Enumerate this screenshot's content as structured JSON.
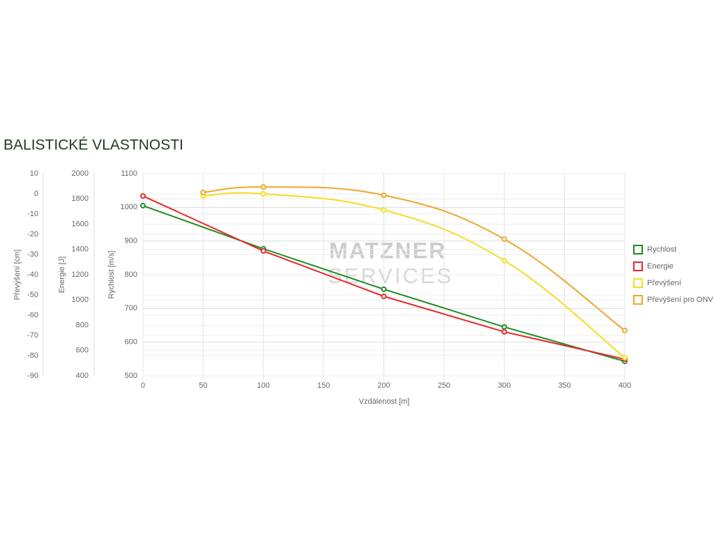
{
  "chart_data": {
    "type": "line",
    "title": "BALISTICKÉ VLASTNOSTI",
    "watermark": [
      "MATZNER",
      "SERVICES"
    ],
    "xlabel": "Vzdálenost [m]",
    "ylabel": "Rychlost [m/s]",
    "y2label": "Energie [J]",
    "y3label": "Převýšení [cm]",
    "xlim": [
      0,
      400
    ],
    "xticks": [
      0,
      50,
      100,
      150,
      200,
      250,
      300,
      350,
      400
    ],
    "ylim": [
      500,
      1100
    ],
    "yticks": [
      500,
      600,
      700,
      800,
      900,
      1000,
      1100
    ],
    "y2lim": [
      400,
      2000
    ],
    "y2ticks": [
      400,
      600,
      800,
      1000,
      1200,
      1400,
      1600,
      1800,
      2000
    ],
    "y3lim": [
      -90,
      10
    ],
    "y3ticks": [
      -90,
      -80,
      -70,
      -60,
      -50,
      -40,
      -30,
      -20,
      -10,
      0,
      10
    ],
    "grid": true,
    "legend": "right",
    "series": [
      {
        "name": "Rychlost",
        "color": "#1e8c1e",
        "axis": "y",
        "smooth": false,
        "x": [
          0,
          100,
          200,
          300,
          400
        ],
        "values": [
          1005,
          877,
          757,
          645,
          543
        ]
      },
      {
        "name": "Energie",
        "color": "#e8272b",
        "axis": "y2",
        "smooth": false,
        "x": [
          0,
          100,
          200,
          300,
          400
        ],
        "values": [
          1823,
          1388,
          1029,
          748,
          532
        ]
      },
      {
        "name": "Převýšení",
        "color": "#f5dc1e",
        "axis": "y3",
        "smooth": true,
        "x": [
          50,
          100,
          200,
          300,
          400
        ],
        "values": [
          -1,
          0,
          -8,
          -33,
          -81
        ]
      },
      {
        "name": "Převýšení pro ONV",
        "color": "#f0a628",
        "axis": "y3",
        "smooth": true,
        "x": [
          50,
          100,
          200,
          300,
          400
        ],
        "values": [
          0.7,
          3.4,
          -0.7,
          -22.4,
          -67.6
        ]
      }
    ]
  }
}
